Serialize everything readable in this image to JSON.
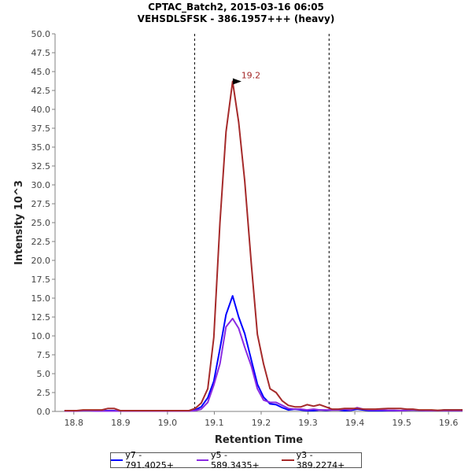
{
  "chart_data": {
    "type": "line",
    "title": "CPTAC_Batch2, 2015-03-16 06:05",
    "subtitle": "VEHSDLSFSK - 386.1957+++ (heavy)",
    "xlabel": "Retention Time",
    "ylabel": "Intensity 10^3",
    "xlim": [
      18.76,
      19.63
    ],
    "ylim": [
      0,
      50
    ],
    "xticks": [
      "18.8",
      "18.9",
      "19.0",
      "19.1",
      "19.2",
      "19.3",
      "19.4",
      "19.5",
      "19.6"
    ],
    "yticks": [
      "0.0",
      "2.5",
      "5.0",
      "7.5",
      "10.0",
      "12.5",
      "15.0",
      "17.5",
      "20.0",
      "22.5",
      "25.0",
      "27.5",
      "30.0",
      "32.5",
      "35.0",
      "37.5",
      "40.0",
      "42.5",
      "45.0",
      "47.5",
      "50.0"
    ],
    "boundaries": [
      19.058,
      19.345
    ],
    "peak_annotation": {
      "label": "19.2",
      "x": 19.163,
      "y": 43.7
    },
    "legend_position": "bottom",
    "x": [
      18.78,
      18.793,
      18.806,
      18.82,
      18.833,
      18.846,
      18.86,
      18.873,
      18.886,
      18.899,
      18.913,
      18.926,
      18.939,
      18.953,
      18.966,
      18.979,
      18.993,
      19.006,
      19.019,
      19.032,
      19.046,
      19.059,
      19.072,
      19.086,
      19.099,
      19.112,
      19.125,
      19.139,
      19.152,
      19.165,
      19.179,
      19.192,
      19.205,
      19.219,
      19.232,
      19.245,
      19.258,
      19.272,
      19.285,
      19.298,
      19.312,
      19.325,
      19.338,
      19.351,
      19.365,
      19.378,
      19.391,
      19.405,
      19.418,
      19.431,
      19.444,
      19.458,
      19.471,
      19.484,
      19.498,
      19.511,
      19.524,
      19.537,
      19.551,
      19.564,
      19.577,
      19.591,
      19.604,
      19.617,
      19.63
    ],
    "series": [
      {
        "name": "y7 - 791.4025+",
        "color": "#0000ff",
        "values": [
          0.1,
          0.1,
          0.1,
          0.1,
          0.1,
          0.1,
          0.1,
          0.1,
          0.1,
          0.05,
          0.05,
          0.05,
          0.05,
          0.05,
          0.05,
          0.05,
          0.05,
          0.1,
          0.05,
          0.1,
          0.1,
          0.2,
          0.6,
          1.8,
          4.0,
          8.3,
          12.8,
          15.3,
          12.5,
          10.3,
          6.8,
          3.6,
          1.9,
          1.0,
          0.9,
          0.5,
          0.2,
          0.3,
          0.2,
          0.1,
          0.1,
          0.2,
          0.15,
          0.2,
          0.2,
          0.1,
          0.15,
          0.3,
          0.2,
          0.1,
          0.1,
          0.1,
          0.1,
          0.1,
          0.1,
          0.15,
          0.2,
          0.15,
          0.1,
          0.1,
          0.1,
          0.2,
          0.2,
          0.2,
          0.2
        ]
      },
      {
        "name": "y5 - 589.3435+",
        "color": "#8a2be2",
        "values": [
          0.05,
          0.05,
          0.05,
          0.1,
          0.1,
          0.05,
          0.05,
          0.05,
          0.05,
          0.05,
          0.05,
          0.05,
          0.05,
          0.05,
          0.05,
          0.05,
          0.05,
          0.05,
          0.05,
          0.05,
          0.05,
          0.1,
          0.3,
          1.2,
          3.5,
          6.3,
          11.2,
          12.3,
          11.0,
          8.5,
          6.0,
          3.0,
          1.5,
          1.2,
          1.2,
          0.8,
          0.4,
          0.3,
          0.3,
          0.2,
          0.3,
          0.2,
          0.2,
          0.2,
          0.2,
          0.3,
          0.2,
          0.5,
          0.3,
          0.2,
          0.2,
          0.2,
          0.15,
          0.15,
          0.1,
          0.15,
          0.2,
          0.15,
          0.1,
          0.1,
          0.1,
          0.1,
          0.1,
          0.1,
          0.1
        ]
      },
      {
        "name": "y3 - 389.2274+",
        "color": "#a52a2a",
        "values": [
          0.1,
          0.1,
          0.1,
          0.2,
          0.2,
          0.2,
          0.2,
          0.4,
          0.4,
          0.1,
          0.1,
          0.1,
          0.1,
          0.1,
          0.1,
          0.1,
          0.1,
          0.1,
          0.1,
          0.1,
          0.1,
          0.4,
          1.1,
          3.0,
          9.8,
          25.0,
          37.0,
          43.7,
          38.3,
          30.5,
          19.5,
          10.2,
          6.3,
          3.0,
          2.5,
          1.4,
          0.8,
          0.6,
          0.6,
          0.9,
          0.7,
          0.9,
          0.6,
          0.3,
          0.3,
          0.4,
          0.4,
          0.4,
          0.3,
          0.3,
          0.3,
          0.35,
          0.4,
          0.4,
          0.4,
          0.3,
          0.3,
          0.2,
          0.2,
          0.2,
          0.15,
          0.2,
          0.2,
          0.2,
          0.2
        ]
      }
    ]
  }
}
